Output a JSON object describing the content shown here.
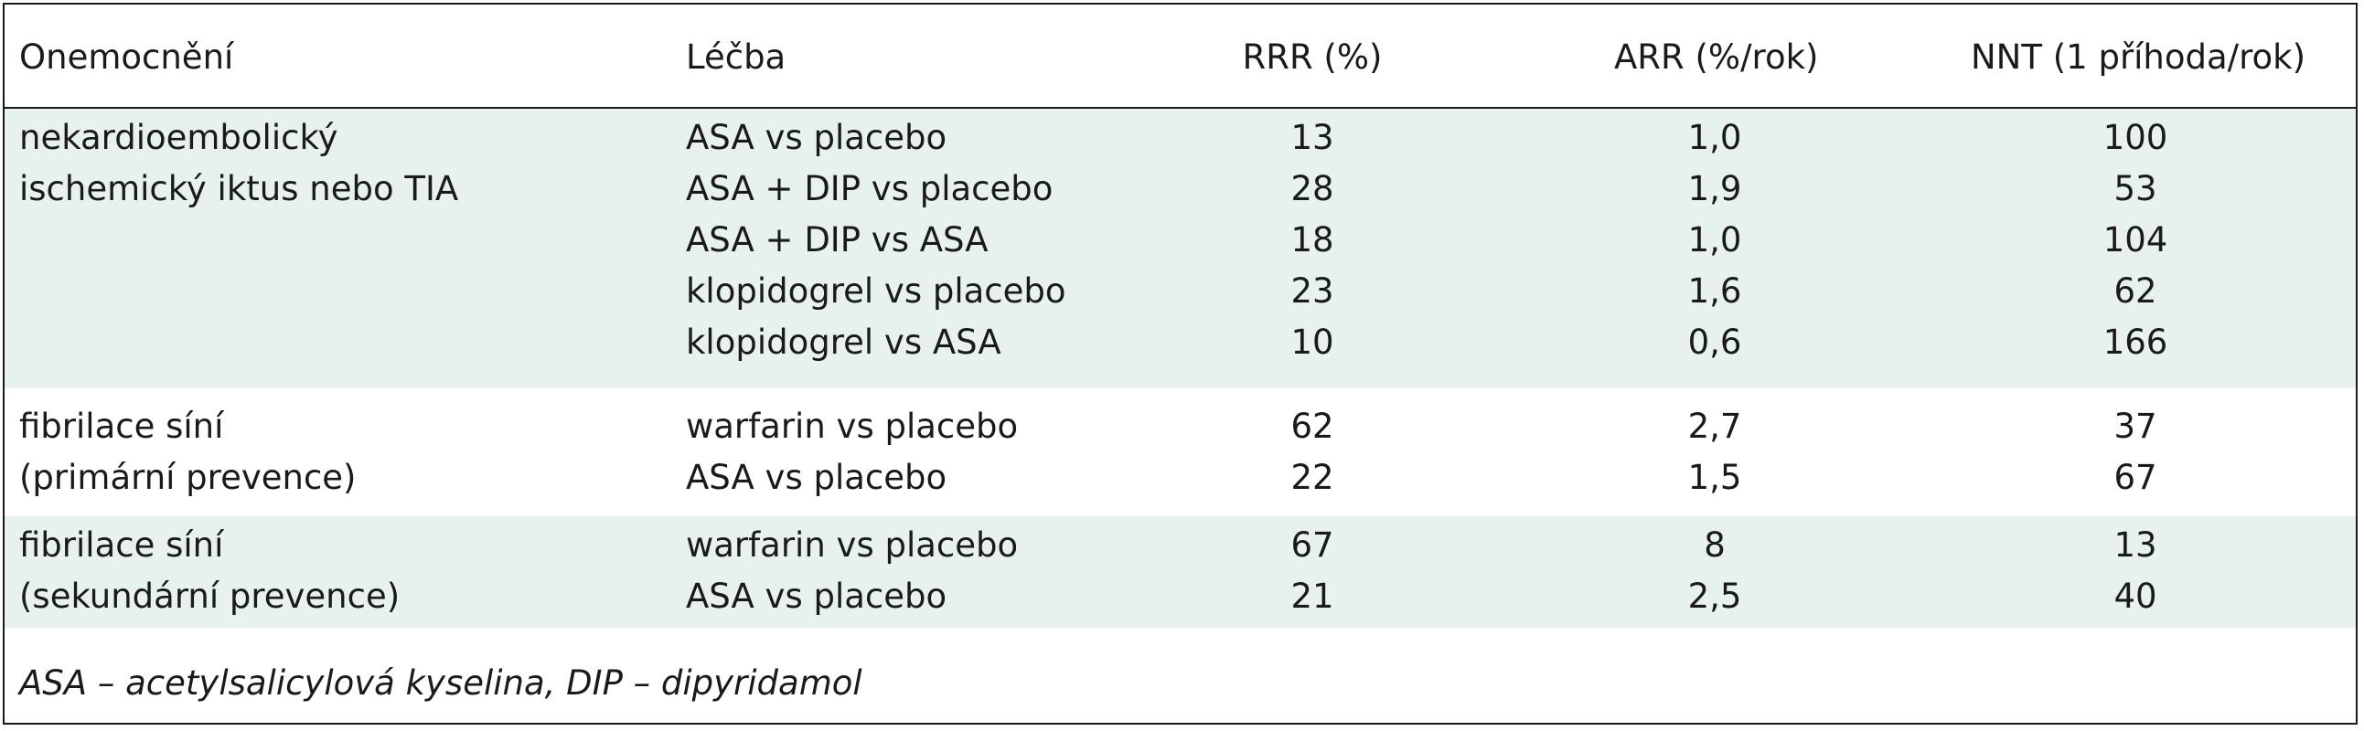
{
  "table": {
    "headers": {
      "disease": "Onemocnění",
      "treatment": "Léčba",
      "rrr": "RRR (%)",
      "arr": "ARR (%/rok)",
      "nnt": "NNT (1 příhoda/rok)"
    },
    "groups": [
      {
        "disease_lines": [
          "nekardioembolický",
          "ischemický iktus nebo TIA"
        ],
        "rows": [
          {
            "treatment": "ASA vs placebo",
            "rrr": "13",
            "arr": "1,0",
            "nnt": "100"
          },
          {
            "treatment": "ASA + DIP vs placebo",
            "rrr": "28",
            "arr": "1,9",
            "nnt": "53"
          },
          {
            "treatment": "ASA + DIP vs ASA",
            "rrr": "18",
            "arr": "1,0",
            "nnt": "104"
          },
          {
            "treatment": "klopidogrel vs placebo",
            "rrr": "23",
            "arr": "1,6",
            "nnt": "62"
          },
          {
            "treatment": "klopidogrel vs ASA",
            "rrr": "10",
            "arr": "0,6",
            "nnt": "166"
          }
        ]
      },
      {
        "disease_lines": [
          "fibrilace síní",
          "(primární prevence)"
        ],
        "rows": [
          {
            "treatment": "warfarin vs placebo",
            "rrr": "62",
            "arr": "2,7",
            "nnt": "37"
          },
          {
            "treatment": "ASA vs placebo",
            "rrr": "22",
            "arr": "1,5",
            "nnt": "67"
          }
        ]
      },
      {
        "disease_lines": [
          "fibrilace síní",
          "(sekundární prevence)"
        ],
        "rows": [
          {
            "treatment": "warfarin vs placebo",
            "rrr": "67",
            "arr": "8",
            "nnt": "13"
          },
          {
            "treatment": "ASA vs placebo",
            "rrr": "21",
            "arr": "2,5",
            "nnt": "40"
          }
        ]
      }
    ],
    "footnote": "ASA – acetylsalicylová kyselina, DIP – dipyridamol"
  },
  "colors": {
    "group_background": "#e7f2ee",
    "border": "#1a1a1a"
  }
}
